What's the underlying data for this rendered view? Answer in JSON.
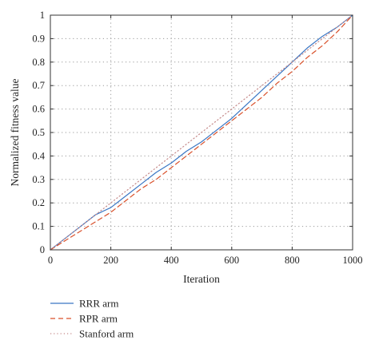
{
  "chart_data": {
    "type": "line",
    "title": "",
    "xlabel": "Iteration",
    "ylabel": "Normalized fitness value",
    "xlim": [
      0,
      1000
    ],
    "ylim": [
      0,
      1
    ],
    "xticks": [
      0,
      200,
      400,
      600,
      800,
      1000
    ],
    "yticks": [
      0,
      0.1,
      0.2,
      0.3,
      0.4,
      0.5,
      0.6,
      0.7,
      0.8,
      0.9,
      1
    ],
    "xtick_labels": [
      "0",
      "200",
      "400",
      "600",
      "800",
      "1000"
    ],
    "ytick_labels": [
      "0",
      "0.1",
      "0.2",
      "0.3",
      "0.4",
      "0.5",
      "0.6",
      "0.7",
      "0.8",
      "0.9",
      "1"
    ],
    "grid": true,
    "legend_position": "bottom-left, below plot",
    "series": [
      {
        "name": "RRR arm",
        "color": "#3a76c4",
        "style": "solid",
        "x": [
          0,
          50,
          100,
          150,
          200,
          250,
          300,
          350,
          400,
          450,
          500,
          550,
          600,
          650,
          700,
          750,
          800,
          850,
          900,
          950,
          1000
        ],
        "y": [
          0,
          0.05,
          0.1,
          0.15,
          0.18,
          0.23,
          0.28,
          0.33,
          0.37,
          0.42,
          0.46,
          0.51,
          0.56,
          0.62,
          0.68,
          0.74,
          0.8,
          0.86,
          0.91,
          0.95,
          1.0
        ]
      },
      {
        "name": "RPR arm",
        "color": "#d9502a",
        "style": "dashed",
        "x": [
          0,
          50,
          100,
          150,
          200,
          250,
          300,
          350,
          400,
          450,
          500,
          550,
          600,
          650,
          700,
          750,
          800,
          850,
          900,
          950,
          1000
        ],
        "y": [
          0,
          0.04,
          0.08,
          0.12,
          0.16,
          0.21,
          0.26,
          0.3,
          0.35,
          0.4,
          0.45,
          0.5,
          0.55,
          0.6,
          0.65,
          0.71,
          0.76,
          0.82,
          0.87,
          0.93,
          1.0
        ]
      },
      {
        "name": "Stanford arm",
        "color": "#c58a8a",
        "style": "dotted",
        "x": [
          0,
          50,
          100,
          150,
          200,
          250,
          300,
          350,
          400,
          450,
          500,
          550,
          600,
          650,
          700,
          750,
          800,
          850,
          900,
          950,
          1000
        ],
        "y": [
          0,
          0.05,
          0.1,
          0.15,
          0.2,
          0.25,
          0.3,
          0.35,
          0.4,
          0.45,
          0.5,
          0.55,
          0.6,
          0.65,
          0.7,
          0.75,
          0.8,
          0.85,
          0.9,
          0.95,
          1.0
        ]
      }
    ]
  }
}
